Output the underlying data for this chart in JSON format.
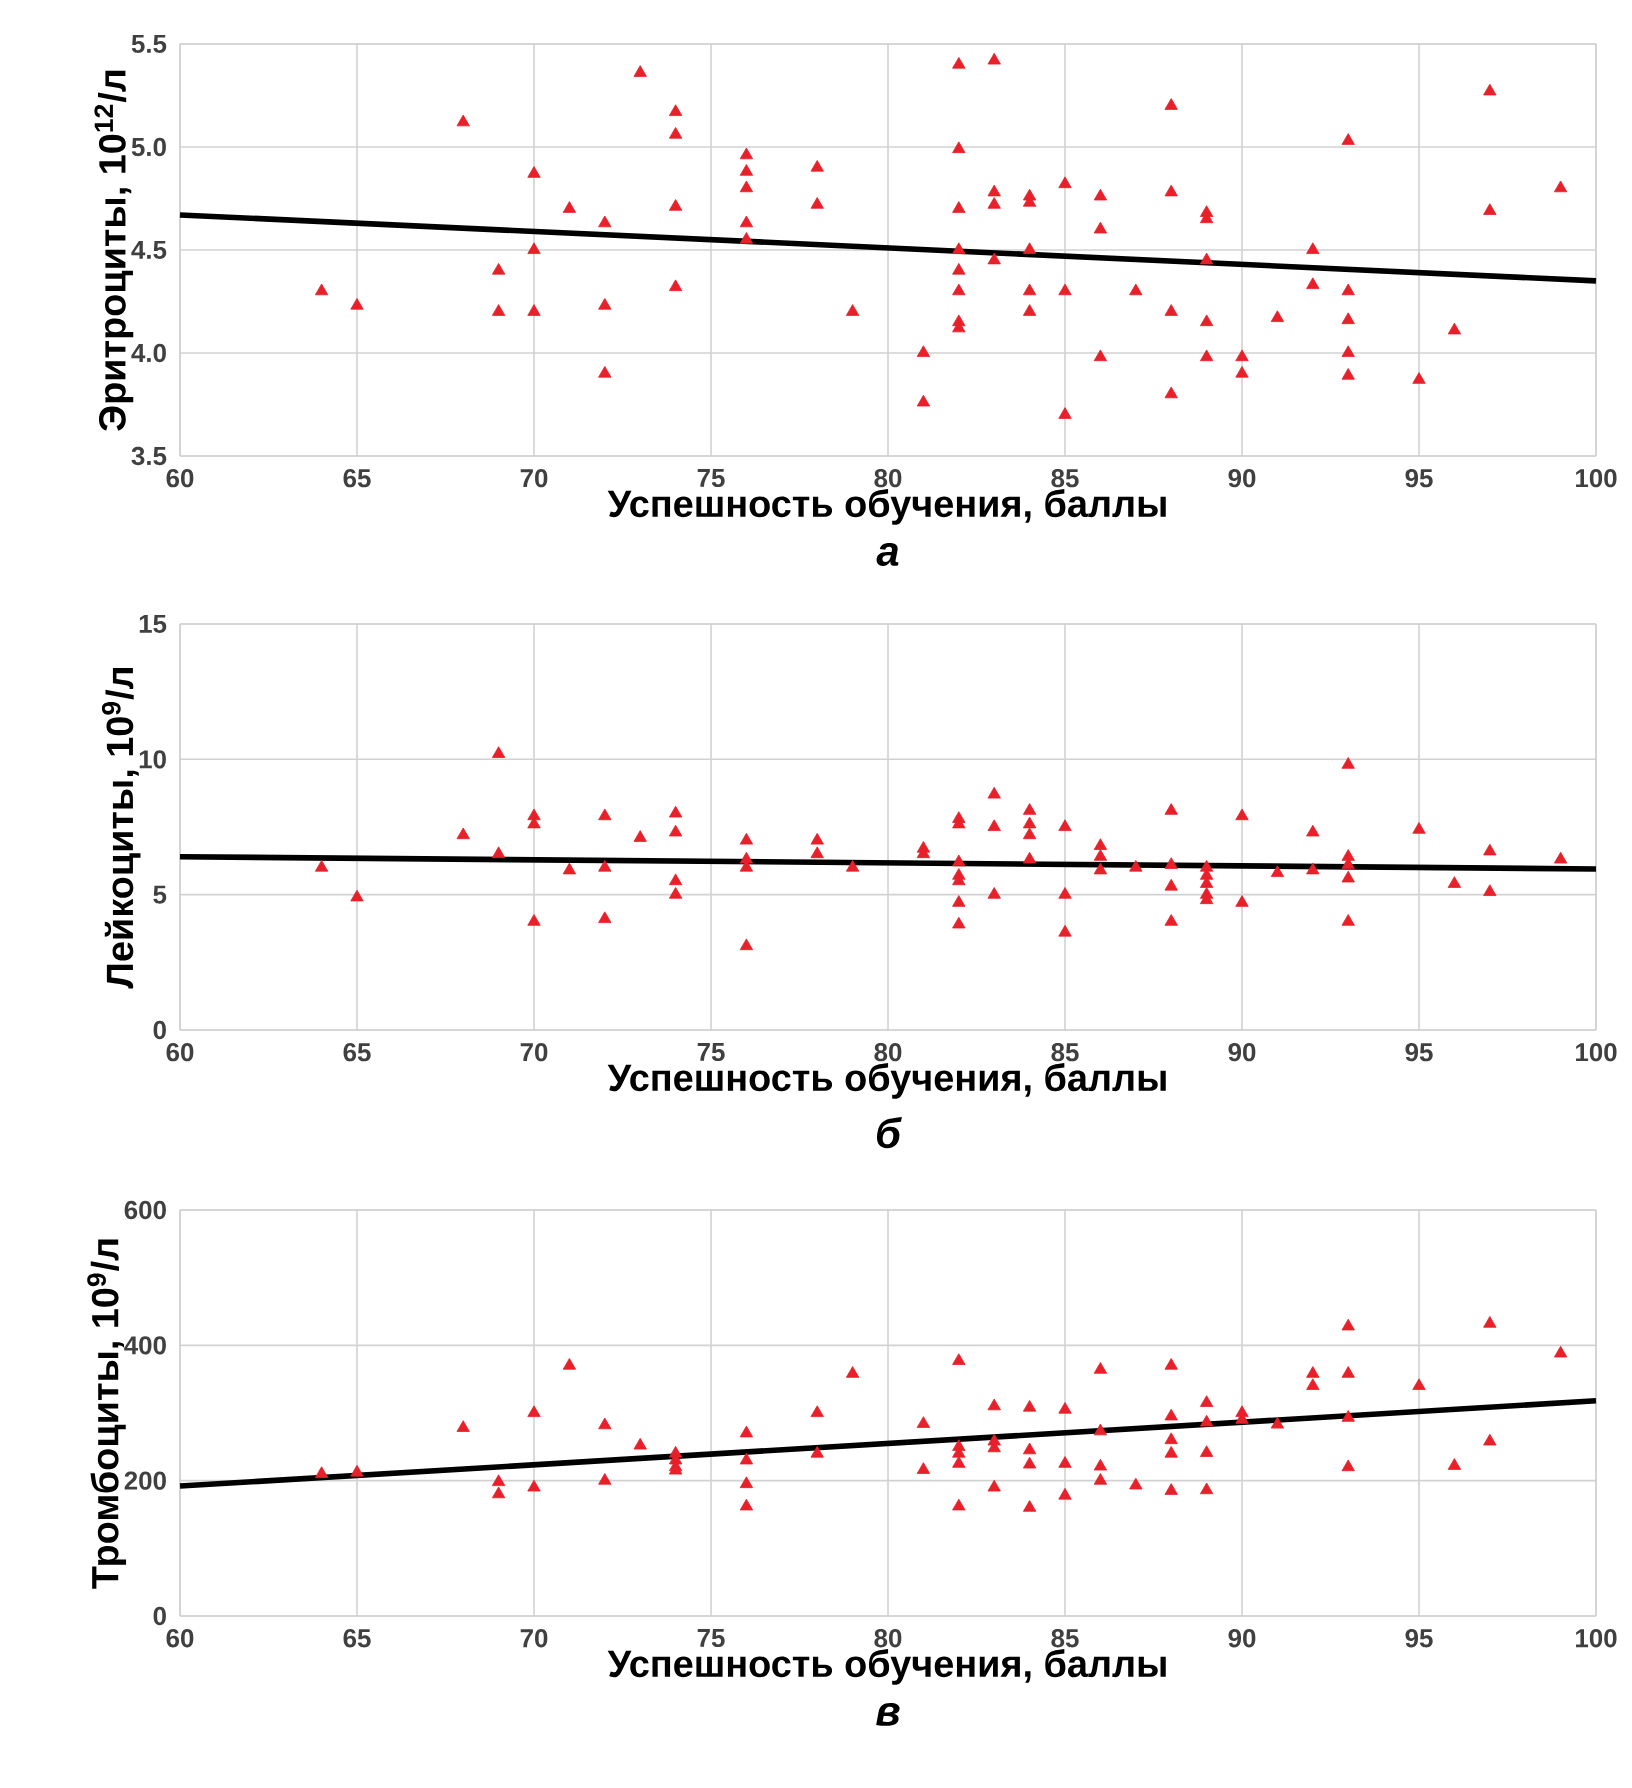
{
  "chart_data": [
    {
      "type": "scatter",
      "xlabel": "Успешность обучения, баллы",
      "ylabel": "Эритроциты, 10$^{12}$/л",
      "annotations": [
        "а"
      ],
      "xlim": [
        60,
        100
      ],
      "xticks": [
        60,
        65,
        70,
        75,
        80,
        85,
        90,
        95,
        100
      ],
      "ylim": [
        3.5,
        5.5
      ],
      "yticks": [
        3.5,
        {
          "value": 4,
          "label": "4.0"
        },
        4.5,
        {
          "value": 5,
          "label": "5.0"
        },
        5.5
      ],
      "grid": true,
      "series": [
        {
          "type": "scatter",
          "color": "#e8202a",
          "marker": "triangle",
          "x": [
            64,
            65,
            68,
            69,
            69,
            70,
            70,
            70,
            71,
            72,
            72,
            72,
            73,
            74,
            74,
            74,
            74,
            76,
            76,
            76,
            76,
            76,
            78,
            78,
            79,
            81,
            81,
            82,
            82,
            82,
            82,
            82,
            82,
            82,
            82,
            83,
            83,
            83,
            83,
            84,
            84,
            84,
            84,
            84,
            85,
            85,
            85,
            86,
            86,
            86,
            87,
            88,
            88,
            88,
            88,
            89,
            89,
            89,
            89,
            89,
            90,
            90,
            91,
            92,
            92,
            93,
            93,
            93,
            93,
            93,
            95,
            96,
            97,
            97,
            99
          ],
          "values": [
            4.3,
            4.23,
            5.12,
            4.4,
            4.2,
            4.87,
            4.5,
            4.2,
            4.7,
            4.63,
            4.23,
            3.9,
            5.36,
            5.17,
            5.06,
            4.71,
            4.32,
            4.96,
            4.88,
            4.8,
            4.63,
            4.55,
            4.9,
            4.72,
            4.2,
            4.0,
            3.76,
            5.4,
            4.99,
            4.7,
            4.5,
            4.4,
            4.3,
            4.15,
            4.12,
            5.42,
            4.78,
            4.72,
            4.45,
            4.76,
            4.73,
            4.5,
            4.3,
            4.2,
            4.82,
            4.3,
            3.7,
            4.76,
            4.6,
            3.98,
            4.3,
            5.2,
            4.78,
            4.2,
            3.8,
            4.68,
            4.65,
            4.45,
            4.15,
            3.98,
            3.98,
            3.9,
            4.17,
            4.5,
            4.33,
            5.03,
            4.3,
            4.16,
            4.0,
            3.89,
            3.87,
            4.11,
            5.27,
            4.69,
            4.8
          ]
        },
        {
          "type": "line",
          "color": "#000000",
          "marker": "none",
          "line_style": "solid",
          "x": [
            60,
            100
          ],
          "values": [
            4.67,
            4.35
          ]
        }
      ]
    },
    {
      "type": "scatter",
      "xlabel": "Успешность обучения, баллы",
      "ylabel": "Лейкоциты, 10$^{9}$/л",
      "annotations": [
        "б"
      ],
      "xlim": [
        60,
        100
      ],
      "xticks": [
        60,
        65,
        70,
        75,
        80,
        85,
        90,
        95,
        100
      ],
      "ylim": [
        0,
        15
      ],
      "yticks": [
        0,
        5,
        10,
        15
      ],
      "grid": true,
      "series": [
        {
          "type": "scatter",
          "color": "#e8202a",
          "marker": "triangle",
          "x": [
            64,
            65,
            68,
            69,
            69,
            70,
            70,
            70,
            71,
            72,
            72,
            72,
            73,
            74,
            74,
            74,
            74,
            76,
            76,
            76,
            76,
            78,
            78,
            79,
            81,
            81,
            82,
            82,
            82,
            82,
            82,
            82,
            82,
            83,
            83,
            83,
            84,
            84,
            84,
            84,
            85,
            85,
            85,
            86,
            86,
            86,
            87,
            88,
            88,
            88,
            88,
            89,
            89,
            89,
            89,
            89,
            90,
            90,
            91,
            92,
            92,
            93,
            93,
            93,
            93,
            93,
            95,
            96,
            97,
            97,
            99
          ],
          "values": [
            6.0,
            4.9,
            7.2,
            10.2,
            6.5,
            7.9,
            7.6,
            4.0,
            5.9,
            7.9,
            6.0,
            4.1,
            7.1,
            8.0,
            7.3,
            5.5,
            5.0,
            7.0,
            6.3,
            6.0,
            3.1,
            7.0,
            6.5,
            6.0,
            6.7,
            6.5,
            7.8,
            7.6,
            6.2,
            5.7,
            5.5,
            4.7,
            3.9,
            8.7,
            7.5,
            5.0,
            8.1,
            7.6,
            7.2,
            6.3,
            7.5,
            5.0,
            3.6,
            6.8,
            6.4,
            5.9,
            6.0,
            8.1,
            6.1,
            5.3,
            4.0,
            6.0,
            5.7,
            5.4,
            5.0,
            4.8,
            7.9,
            4.7,
            5.8,
            7.3,
            5.9,
            9.8,
            6.4,
            6.1,
            5.6,
            4.0,
            7.4,
            5.4,
            6.6,
            5.1,
            6.3
          ]
        },
        {
          "type": "line",
          "color": "#000000",
          "marker": "none",
          "line_style": "solid",
          "x": [
            60,
            100
          ],
          "values": [
            6.4,
            5.95
          ]
        }
      ]
    },
    {
      "type": "scatter",
      "xlabel": "Успешность обучения, баллы",
      "ylabel": "Тромбоциты, 10$^{9}$/л",
      "annotations": [
        "в"
      ],
      "xlim": [
        60,
        100
      ],
      "xticks": [
        60,
        65,
        70,
        75,
        80,
        85,
        90,
        95,
        100
      ],
      "ylim": [
        0,
        600
      ],
      "yticks": [
        0,
        200,
        400,
        600
      ],
      "grid": true,
      "series": [
        {
          "type": "scatter",
          "color": "#e8202a",
          "marker": "triangle",
          "x": [
            64,
            65,
            68,
            69,
            69,
            70,
            70,
            71,
            72,
            72,
            73,
            74,
            74,
            74,
            74,
            76,
            76,
            76,
            76,
            78,
            78,
            79,
            81,
            81,
            82,
            82,
            82,
            82,
            82,
            83,
            83,
            83,
            83,
            84,
            84,
            84,
            84,
            85,
            85,
            85,
            86,
            86,
            86,
            86,
            87,
            88,
            88,
            88,
            88,
            88,
            89,
            89,
            89,
            89,
            90,
            90,
            91,
            92,
            92,
            93,
            93,
            93,
            93,
            95,
            96,
            97,
            97,
            99
          ],
          "values": [
            210,
            212,
            278,
            198,
            180,
            300,
            190,
            370,
            282,
            200,
            252,
            240,
            230,
            220,
            215,
            270,
            230,
            195,
            162,
            300,
            240,
            358,
            284,
            216,
            377,
            250,
            240,
            225,
            162,
            310,
            258,
            248,
            190,
            308,
            245,
            224,
            160,
            305,
            225,
            178,
            364,
            273,
            221,
            200,
            193,
            370,
            295,
            260,
            240,
            185,
            315,
            286,
            241,
            186,
            300,
            290,
            283,
            358,
            340,
            428,
            358,
            293,
            220,
            340,
            222,
            432,
            258,
            388
          ]
        },
        {
          "type": "line",
          "color": "#000000",
          "marker": "none",
          "line_style": "solid",
          "x": [
            60,
            100
          ],
          "values": [
            192,
            318
          ]
        }
      ]
    }
  ]
}
